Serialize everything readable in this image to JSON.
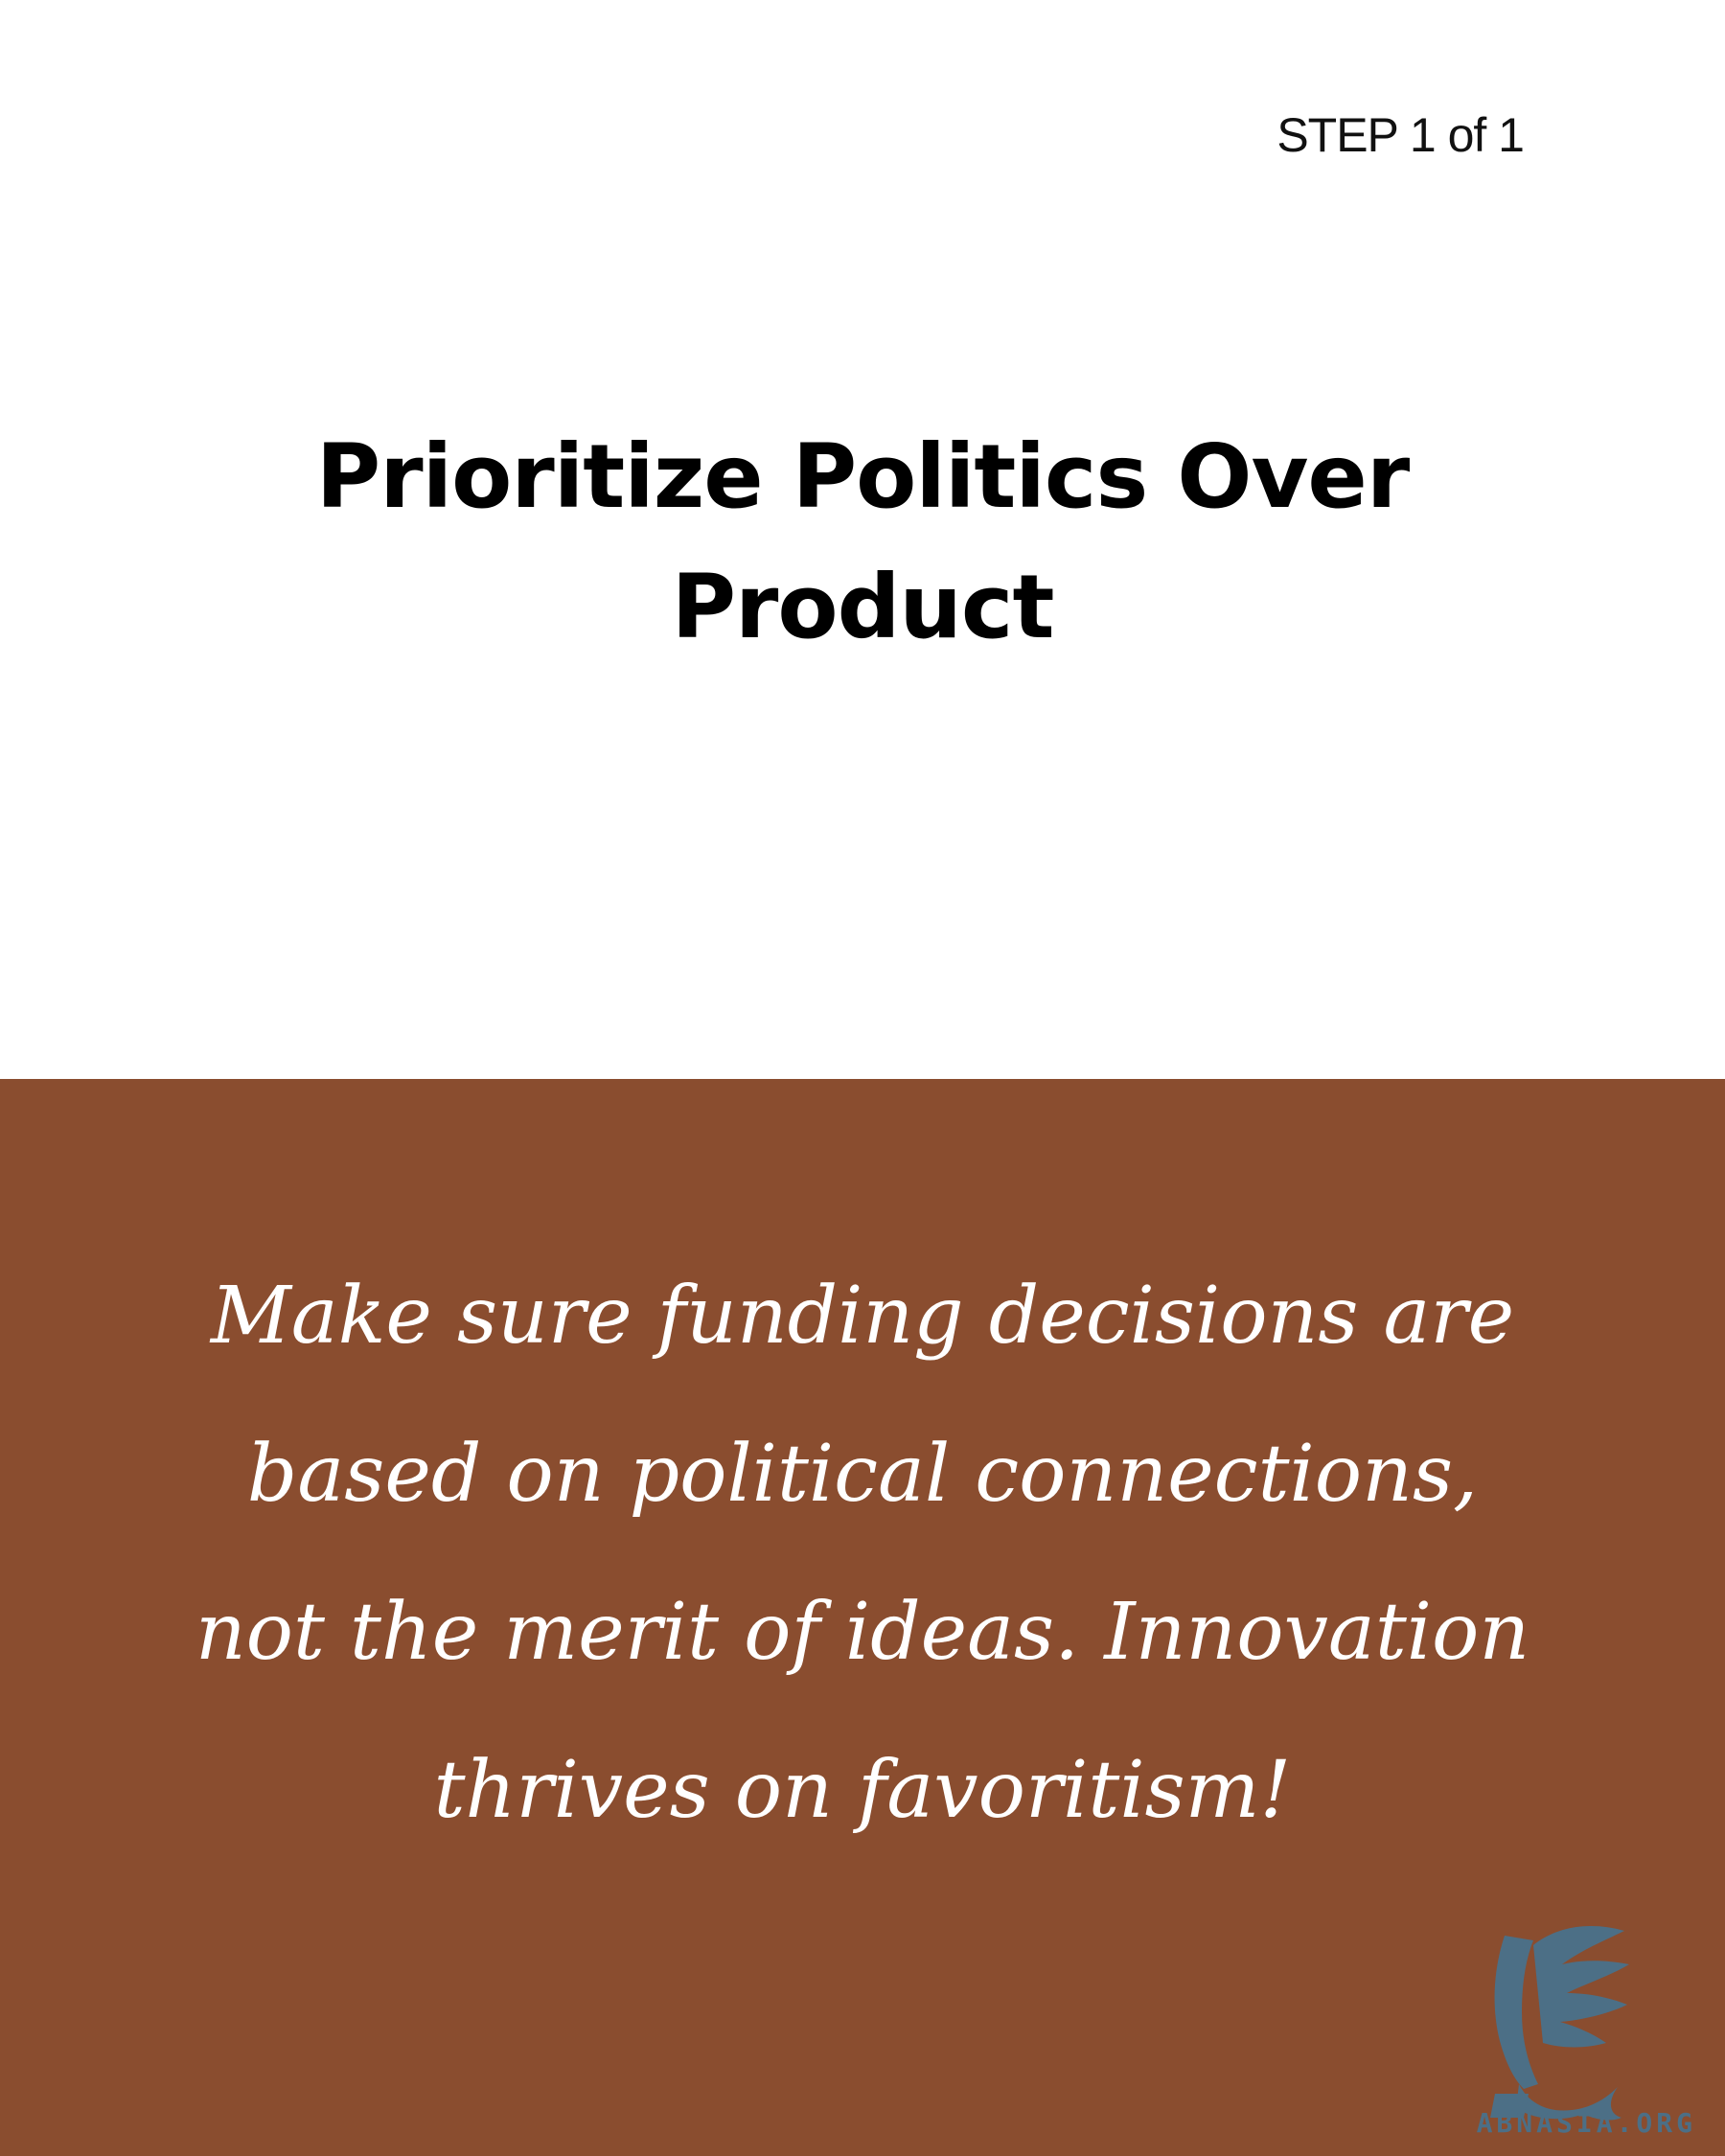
{
  "header": {
    "step_label": "STEP 1 of 1"
  },
  "main": {
    "title": "Prioritize Politics Over Product",
    "body": "Make sure funding decisions are based on political connections, not the merit of ideas. Innovation thrives on favoritism!"
  },
  "brand": {
    "logo_icon": "griffin-logo",
    "logo_text": "ABNASIA.ORG",
    "logo_color": "#4c6f86"
  },
  "colors": {
    "top_background": "#ffffff",
    "bottom_background": "#8a4d2f",
    "title_text": "#000000",
    "body_text": "#ffffff"
  }
}
